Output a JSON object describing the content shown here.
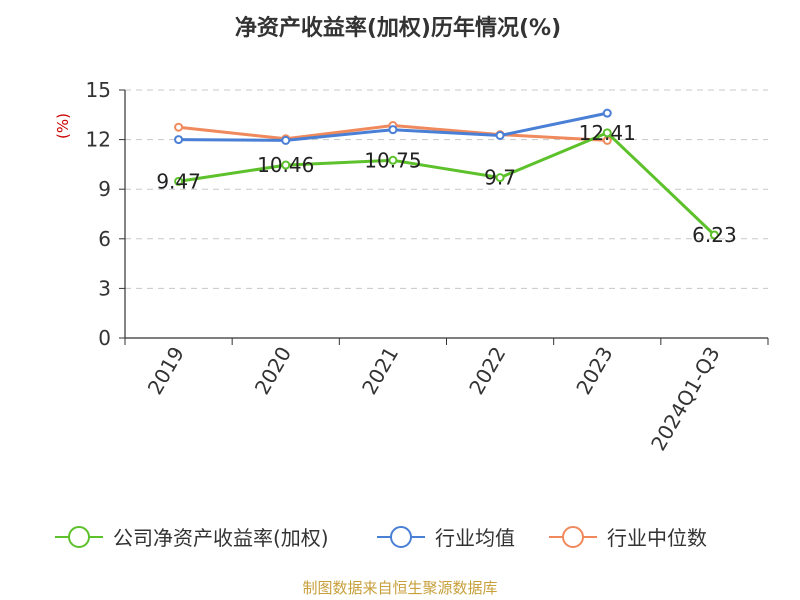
{
  "chart_data": {
    "type": "line",
    "title": "净资产收益率(加权)历年情况(%)",
    "ylabel": "(%)",
    "xlabel": "",
    "categories": [
      "2019",
      "2020",
      "2021",
      "2022",
      "2023",
      "2024Q1-Q3"
    ],
    "ylim": [
      0,
      15
    ],
    "yticks": [
      "0",
      "3",
      "6",
      "9",
      "12",
      "15"
    ],
    "grid": true,
    "legend_position": "bottom",
    "series": [
      {
        "name": "公司净资产收益率(加权)",
        "color": "#5cc12a",
        "values": [
          9.47,
          10.46,
          10.75,
          9.7,
          12.41,
          6.23
        ],
        "labels": [
          "9.47",
          "10.46",
          "10.75",
          "9.7",
          "12.41",
          "6.23"
        ]
      },
      {
        "name": "行业均值",
        "color": "#4a7fd6",
        "values": [
          12.0,
          11.95,
          12.6,
          12.25,
          13.6,
          null
        ]
      },
      {
        "name": "行业中位数",
        "color": "#f08a5d",
        "values": [
          12.75,
          12.05,
          12.85,
          12.3,
          11.95,
          null
        ]
      }
    ]
  },
  "source": "制图数据来自恒生聚源数据库"
}
